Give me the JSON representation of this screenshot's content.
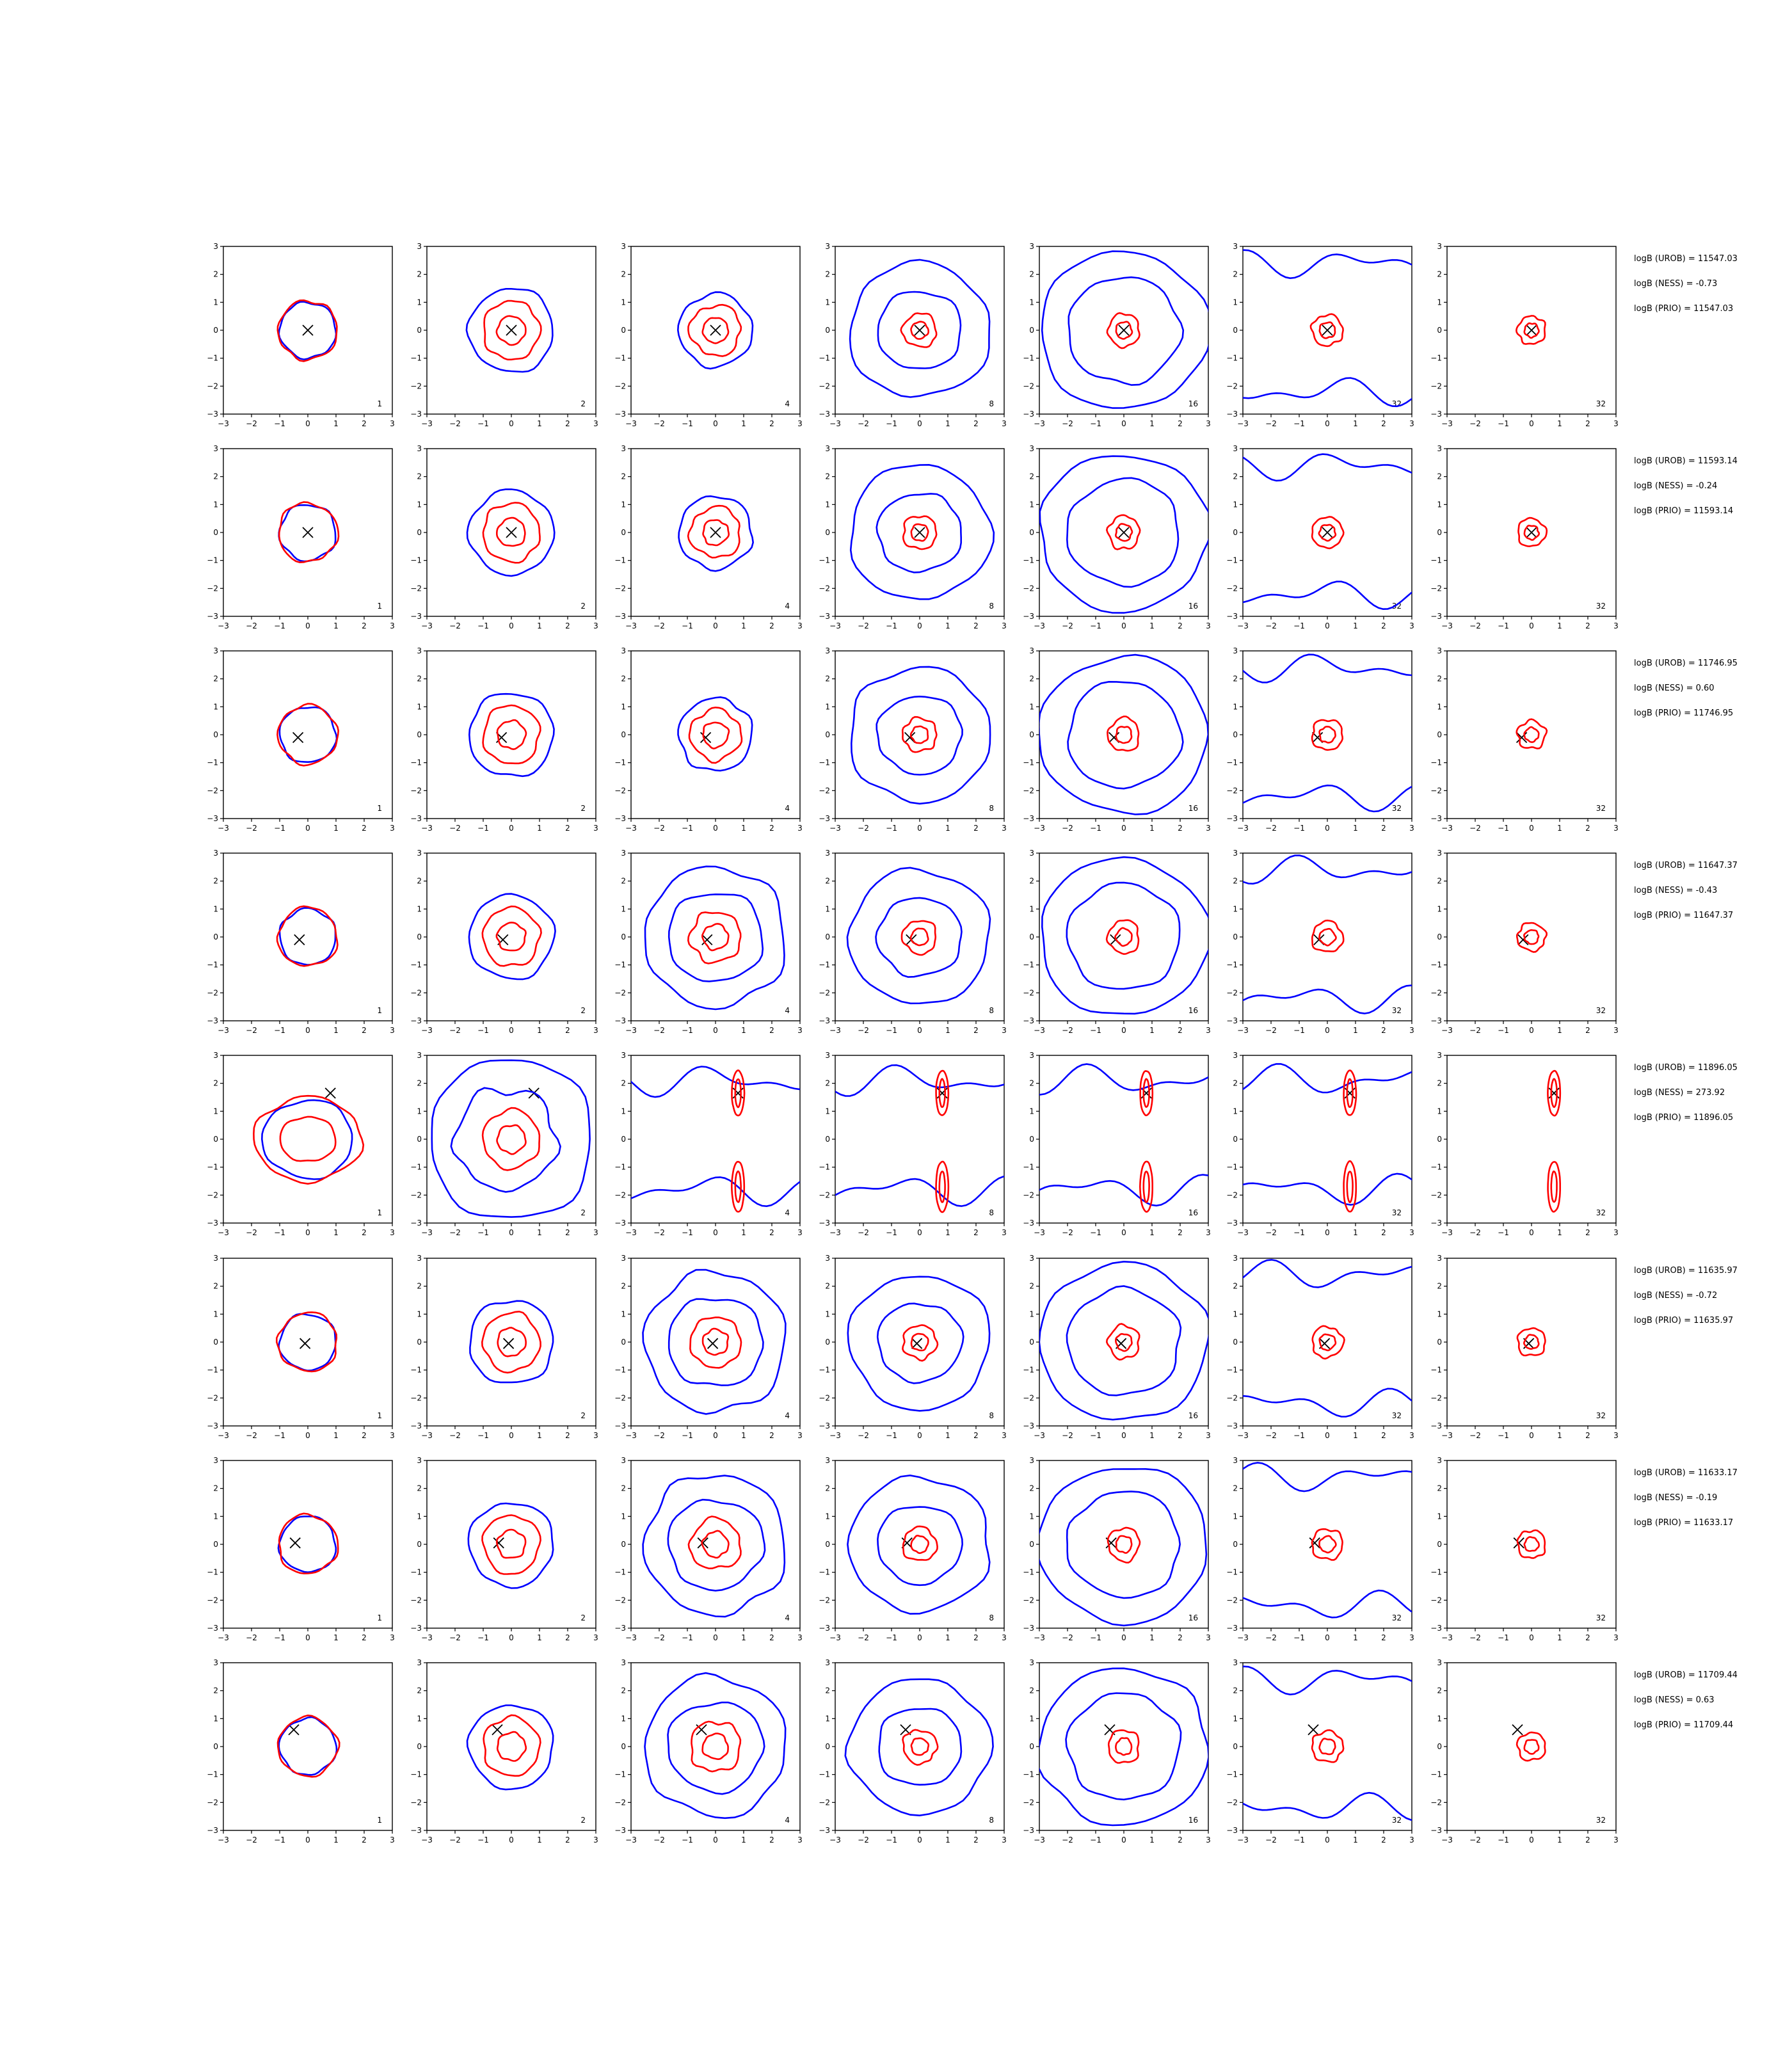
{
  "chart_data": {
    "type": "contour",
    "title": "",
    "xlabel": "",
    "ylabel": "",
    "xlim": [
      -3,
      3
    ],
    "ylim": [
      -3,
      3
    ],
    "ticks": [
      "−3",
      "−2",
      "−1",
      "0",
      "1",
      "2",
      "3"
    ],
    "grid": false,
    "series": [
      {
        "color": "#0000ff"
      },
      {
        "color": "#ff0000"
      },
      {
        "color": "#000000",
        "marker": "x"
      }
    ],
    "column_labels": [
      "1",
      "2",
      "4",
      "8",
      "16",
      "32",
      "32"
    ],
    "rows": [
      {
        "marker": [
          0,
          0
        ],
        "stats": [
          "logB (UROB) = 11547.03",
          "logB (NESS) = -0.73",
          "logB (PRIO) = 11547.03"
        ]
      },
      {
        "marker": [
          0,
          0
        ],
        "stats": [
          "logB (UROB) = 11593.14",
          "logB (NESS) = -0.24",
          "logB (PRIO) = 11593.14"
        ]
      },
      {
        "marker": [
          -0.35,
          -0.1
        ],
        "stats": [
          "logB (UROB) = 11746.95",
          "logB (NESS) = 0.60",
          "logB (PRIO) = 11746.95"
        ]
      },
      {
        "marker": [
          -0.3,
          -0.1
        ],
        "stats": [
          "logB (UROB) = 11647.37",
          "logB (NESS) = -0.43",
          "logB (PRIO) = 11647.37"
        ]
      },
      {
        "marker": [
          0.8,
          1.65
        ],
        "stats": [
          "logB (UROB) = 11896.05",
          "logB (NESS) = 273.92",
          "logB (PRIO) = 11896.05"
        ]
      },
      {
        "marker": [
          -0.1,
          -0.05
        ],
        "stats": [
          "logB (UROB) = 11635.97",
          "logB (NESS) = -0.72",
          "logB (PRIO) = 11635.97"
        ]
      },
      {
        "marker": [
          -0.45,
          0.05
        ],
        "stats": [
          "logB (UROB) = 11633.17",
          "logB (NESS) = -0.19",
          "logB (PRIO) = 11633.17"
        ]
      },
      {
        "marker": [
          -0.5,
          0.6
        ],
        "stats": [
          "logB (UROB) = 11709.44",
          "logB (NESS) = 0.63",
          "logB (PRIO) = 11709.44"
        ]
      }
    ]
  }
}
